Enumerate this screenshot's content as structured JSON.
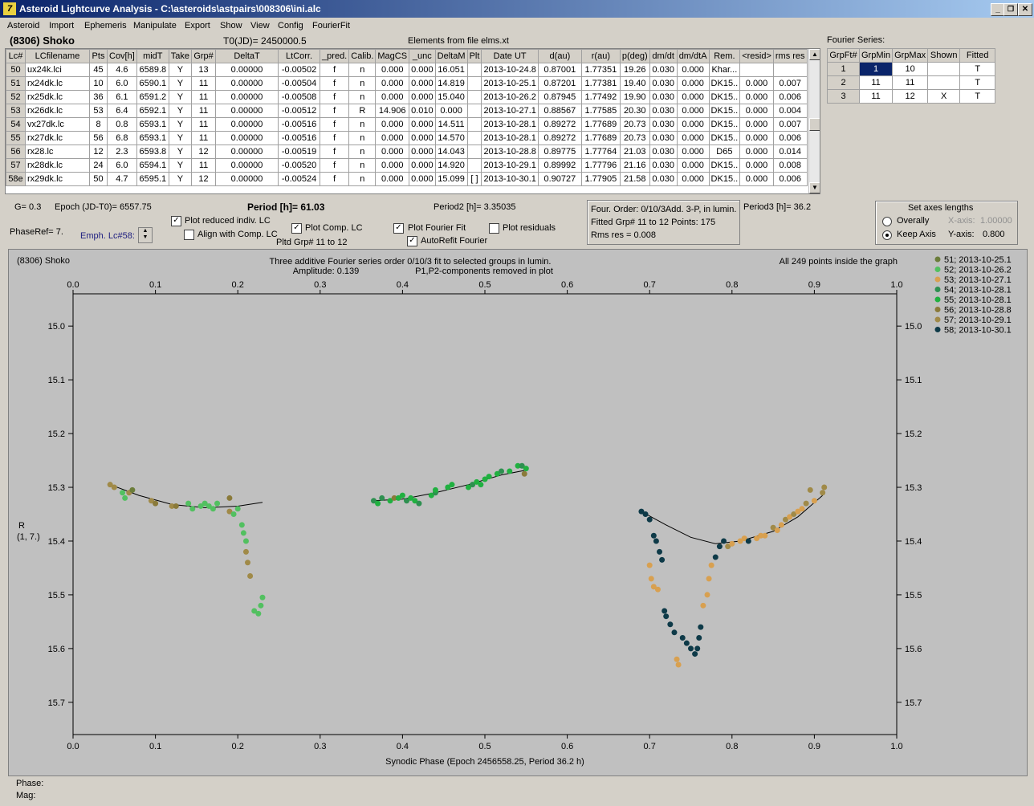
{
  "window": {
    "title": "Asteroid Lightcurve Analysis - C:\\asteroids\\astpairs\\008306\\ini.alc",
    "icon_name": "app-icon",
    "buttons": [
      "minimize-icon",
      "restore-icon",
      "close-icon"
    ],
    "minimize_glyph": "_",
    "restore_glyph": "❐",
    "close_glyph": "✕",
    "icon_glyph": "7"
  },
  "menu": [
    "Asteroid",
    "Import",
    "Ephemeris",
    "Manipulate",
    "Export",
    "Show",
    "View",
    "Config",
    "FourierFit"
  ],
  "header": {
    "asteroid": "(8306) Shoko",
    "t0": "T0(JD)= 2450000.5",
    "elements": "Elements from file elms.xt",
    "fourier_series_label": "Fourier Series:"
  },
  "lc_table": {
    "columns": [
      "Lc#",
      "LCfilename",
      "Pts",
      "Cov[h]",
      "midT",
      "Take",
      "Grp#",
      "DeltaT",
      "LtCorr.",
      "_pred.",
      "Calib.",
      "MagCS",
      "_unc",
      "DeltaM",
      "Plt",
      "Date UT",
      "d(au)",
      "r(au)",
      "p(deg)",
      "dm/dt",
      "dm/dtA",
      "Rem.",
      "<resid>",
      "rms res"
    ],
    "rows": [
      [
        "50",
        "ux24k.lci",
        "45",
        "4.6",
        "6589.8",
        "Y",
        "13",
        "0.00000",
        "-0.00502",
        "f",
        "n",
        "0.000",
        "0.000",
        "16.051",
        "",
        "2013-10-24.8",
        "0.87001",
        "1.77351",
        "19.26",
        "0.030",
        "0.000",
        "Khar...",
        "",
        ""
      ],
      [
        "51",
        "rx24dk.lc",
        "10",
        "6.0",
        "6590.1",
        "Y",
        "11",
        "0.00000",
        "-0.00504",
        "f",
        "n",
        "0.000",
        "0.000",
        "14.819",
        "",
        "2013-10-25.1",
        "0.87201",
        "1.77381",
        "19.40",
        "0.030",
        "0.000",
        "DK15..",
        "0.000",
        "0.007"
      ],
      [
        "52",
        "rx25dk.lc",
        "36",
        "6.1",
        "6591.2",
        "Y",
        "11",
        "0.00000",
        "-0.00508",
        "f",
        "n",
        "0.000",
        "0.000",
        "15.040",
        "",
        "2013-10-26.2",
        "0.87945",
        "1.77492",
        "19.90",
        "0.030",
        "0.000",
        "DK15..",
        "0.000",
        "0.006"
      ],
      [
        "53",
        "rx26dk.lc",
        "53",
        "6.4",
        "6592.1",
        "Y",
        "11",
        "0.00000",
        "-0.00512",
        "f",
        "R",
        "14.906",
        "0.010",
        "0.000",
        "",
        "2013-10-27.1",
        "0.88567",
        "1.77585",
        "20.30",
        "0.030",
        "0.000",
        "DK15..",
        "0.000",
        "0.004"
      ],
      [
        "54",
        "vx27dk.lc",
        "8",
        "0.8",
        "6593.1",
        "Y",
        "11",
        "0.00000",
        "-0.00516",
        "f",
        "n",
        "0.000",
        "0.000",
        "14.511",
        "",
        "2013-10-28.1",
        "0.89272",
        "1.77689",
        "20.73",
        "0.030",
        "0.000",
        "DK15..",
        "0.000",
        "0.007"
      ],
      [
        "55",
        "rx27dk.lc",
        "56",
        "6.8",
        "6593.1",
        "Y",
        "11",
        "0.00000",
        "-0.00516",
        "f",
        "n",
        "0.000",
        "0.000",
        "14.570",
        "",
        "2013-10-28.1",
        "0.89272",
        "1.77689",
        "20.73",
        "0.030",
        "0.000",
        "DK15..",
        "0.000",
        "0.006"
      ],
      [
        "56",
        "rx28.lc",
        "12",
        "2.3",
        "6593.8",
        "Y",
        "12",
        "0.00000",
        "-0.00519",
        "f",
        "n",
        "0.000",
        "0.000",
        "14.043",
        "",
        "2013-10-28.8",
        "0.89775",
        "1.77764",
        "21.03",
        "0.030",
        "0.000",
        "D65",
        "0.000",
        "0.014"
      ],
      [
        "57",
        "rx28dk.lc",
        "24",
        "6.0",
        "6594.1",
        "Y",
        "11",
        "0.00000",
        "-0.00520",
        "f",
        "n",
        "0.000",
        "0.000",
        "14.920",
        "",
        "2013-10-29.1",
        "0.89992",
        "1.77796",
        "21.16",
        "0.030",
        "0.000",
        "DK15..",
        "0.000",
        "0.008"
      ],
      [
        "58e",
        "rx29dk.lc",
        "50",
        "4.7",
        "6595.1",
        "Y",
        "12",
        "0.00000",
        "-0.00524",
        "f",
        "n",
        "0.000",
        "0.000",
        "15.099",
        "[ ]",
        "2013-10-30.1",
        "0.90727",
        "1.77905",
        "21.58",
        "0.030",
        "0.000",
        "DK15..",
        "0.000",
        "0.006"
      ]
    ]
  },
  "fourier_table": {
    "columns": [
      "GrpFt#",
      "GrpMin",
      "GrpMax",
      "Shown",
      "Fitted"
    ],
    "rows": [
      [
        "1",
        "1",
        "10",
        "",
        "T"
      ],
      [
        "2",
        "11",
        "11",
        "",
        "T"
      ],
      [
        "3",
        "11",
        "12",
        "X",
        "T"
      ]
    ]
  },
  "controls": {
    "g": "G= 0.3",
    "epoch": "Epoch (JD-T0)= 6557.75",
    "period": "Period [h]= 61.03",
    "period2": "Period2 [h]= 3.35035",
    "period3": "Period3 [h]= 36.2",
    "phase_ref": "PhaseRef= 7.",
    "emph_lc": "Emph. Lc#58:",
    "plot_reduced": "Plot reduced indiv. LC",
    "align_comp": "Align with Comp. LC",
    "plot_comp": "Plot Comp. LC",
    "pltd_grp": "Pltd Grp#  11 to   12",
    "plot_fourier": "Plot Fourier Fit",
    "autorefit": "AutoRefit Fourier",
    "plot_residuals": "Plot residuals",
    "check_glyph": "✓",
    "checked": {
      "plot_reduced": true,
      "align_comp": false,
      "plot_comp": true,
      "plot_fourier": true,
      "autorefit": true,
      "plot_residuals": false
    },
    "info_order": "Four. Order:  0/10/3Add. 3-P, in lumin.",
    "info_fitted": "Fitted Grp# 11 to 12 Points: 175",
    "info_rms": "Rms res      = 0.008",
    "axes_title": "Set axes lengths",
    "overally": "Overally",
    "keep_axis": "Keep Axis",
    "x_axis_label": "X-axis:",
    "x_axis_value": "1.00000",
    "y_axis_label": "Y-axis:",
    "y_axis_value": "0.800",
    "axes_mode": "keep_axis"
  },
  "chart_data": {
    "type": "scatter",
    "title_left": "(8306) Shoko",
    "title_center_1": "Three additive Fourier series order 0/10/3 fit to selected groups in lumin.",
    "title_center_2": "Amplitude: 0.139",
    "title_center_3": "P1,P2-components removed in plot",
    "title_right": "All 249 points inside the graph",
    "xlabel": "Synodic Phase (Epoch 2456558.25, Period 36.2 h)",
    "ylabel": [
      "R",
      "(1, 7.)"
    ],
    "xlim": [
      0.0,
      1.0
    ],
    "ylim": [
      15.76,
      14.94
    ],
    "x_ticks": [
      "0.0",
      "0.1",
      "0.2",
      "0.3",
      "0.4",
      "0.5",
      "0.6",
      "0.7",
      "0.8",
      "0.9",
      "1.0"
    ],
    "y_ticks": [
      "15.0",
      "15.1",
      "15.2",
      "15.3",
      "15.4",
      "15.5",
      "15.6",
      "15.7"
    ],
    "series": [
      {
        "name": "51; 2013-10-25.1",
        "color": "#6b7d3a"
      },
      {
        "name": "52; 2013-10-26.2",
        "color": "#52c060"
      },
      {
        "name": "53; 2013-10-27.1",
        "color": "#d8a050"
      },
      {
        "name": "54; 2013-10-28.1",
        "color": "#2e9050"
      },
      {
        "name": "55; 2013-10-28.1",
        "color": "#20b040"
      },
      {
        "name": "56; 2013-10-28.8",
        "color": "#8a7a3a"
      },
      {
        "name": "57; 2013-10-29.1",
        "color": "#a08a48"
      },
      {
        "name": "58; 2013-10-30.1",
        "color": "#0e3a48"
      }
    ],
    "points": [
      [
        0.045,
        15.295,
        6
      ],
      [
        0.05,
        15.3,
        6
      ],
      [
        0.06,
        15.31,
        1
      ],
      [
        0.063,
        15.32,
        1
      ],
      [
        0.068,
        15.31,
        6
      ],
      [
        0.072,
        15.305,
        0
      ],
      [
        0.095,
        15.325,
        6
      ],
      [
        0.1,
        15.33,
        5
      ],
      [
        0.12,
        15.335,
        6
      ],
      [
        0.125,
        15.335,
        5
      ],
      [
        0.14,
        15.33,
        1
      ],
      [
        0.145,
        15.34,
        1
      ],
      [
        0.155,
        15.335,
        1
      ],
      [
        0.16,
        15.33,
        1
      ],
      [
        0.165,
        15.335,
        1
      ],
      [
        0.17,
        15.34,
        1
      ],
      [
        0.175,
        15.33,
        1
      ],
      [
        0.19,
        15.32,
        5
      ],
      [
        0.19,
        15.345,
        6
      ],
      [
        0.195,
        15.35,
        1
      ],
      [
        0.2,
        15.34,
        1
      ],
      [
        0.205,
        15.37,
        1
      ],
      [
        0.207,
        15.385,
        1
      ],
      [
        0.21,
        15.4,
        1
      ],
      [
        0.21,
        15.42,
        6
      ],
      [
        0.212,
        15.44,
        6
      ],
      [
        0.215,
        15.465,
        6
      ],
      [
        0.22,
        15.53,
        1
      ],
      [
        0.225,
        15.535,
        1
      ],
      [
        0.228,
        15.52,
        1
      ],
      [
        0.23,
        15.505,
        1
      ],
      [
        0.365,
        15.325,
        3
      ],
      [
        0.37,
        15.33,
        4
      ],
      [
        0.375,
        15.32,
        3
      ],
      [
        0.385,
        15.325,
        4
      ],
      [
        0.39,
        15.32,
        5
      ],
      [
        0.395,
        15.32,
        4
      ],
      [
        0.4,
        15.315,
        4
      ],
      [
        0.405,
        15.325,
        3
      ],
      [
        0.41,
        15.32,
        4
      ],
      [
        0.415,
        15.325,
        4
      ],
      [
        0.42,
        15.33,
        3
      ],
      [
        0.435,
        15.315,
        4
      ],
      [
        0.44,
        15.31,
        3
      ],
      [
        0.44,
        15.305,
        4
      ],
      [
        0.455,
        15.3,
        4
      ],
      [
        0.46,
        15.295,
        4
      ],
      [
        0.48,
        15.3,
        4
      ],
      [
        0.485,
        15.295,
        3
      ],
      [
        0.49,
        15.29,
        4
      ],
      [
        0.495,
        15.295,
        4
      ],
      [
        0.5,
        15.285,
        4
      ],
      [
        0.505,
        15.28,
        4
      ],
      [
        0.515,
        15.275,
        4
      ],
      [
        0.52,
        15.27,
        3
      ],
      [
        0.53,
        15.27,
        4
      ],
      [
        0.54,
        15.26,
        4
      ],
      [
        0.545,
        15.26,
        3
      ],
      [
        0.548,
        15.275,
        5
      ],
      [
        0.55,
        15.265,
        4
      ],
      [
        0.69,
        15.345,
        7
      ],
      [
        0.695,
        15.35,
        7
      ],
      [
        0.7,
        15.36,
        7
      ],
      [
        0.7,
        15.445,
        2
      ],
      [
        0.702,
        15.47,
        2
      ],
      [
        0.705,
        15.485,
        2
      ],
      [
        0.71,
        15.49,
        2
      ],
      [
        0.705,
        15.39,
        7
      ],
      [
        0.708,
        15.4,
        7
      ],
      [
        0.712,
        15.42,
        7
      ],
      [
        0.715,
        15.435,
        7
      ],
      [
        0.718,
        15.53,
        7
      ],
      [
        0.72,
        15.54,
        7
      ],
      [
        0.725,
        15.555,
        7
      ],
      [
        0.73,
        15.57,
        7
      ],
      [
        0.733,
        15.62,
        2
      ],
      [
        0.735,
        15.63,
        2
      ],
      [
        0.74,
        15.58,
        7
      ],
      [
        0.745,
        15.59,
        7
      ],
      [
        0.75,
        15.6,
        7
      ],
      [
        0.755,
        15.61,
        7
      ],
      [
        0.758,
        15.6,
        7
      ],
      [
        0.76,
        15.58,
        7
      ],
      [
        0.762,
        15.56,
        7
      ],
      [
        0.765,
        15.52,
        2
      ],
      [
        0.77,
        15.5,
        2
      ],
      [
        0.772,
        15.47,
        2
      ],
      [
        0.775,
        15.445,
        2
      ],
      [
        0.78,
        15.43,
        7
      ],
      [
        0.785,
        15.41,
        7
      ],
      [
        0.79,
        15.4,
        7
      ],
      [
        0.795,
        15.41,
        6
      ],
      [
        0.8,
        15.405,
        2
      ],
      [
        0.81,
        15.4,
        2
      ],
      [
        0.815,
        15.395,
        2
      ],
      [
        0.82,
        15.4,
        7
      ],
      [
        0.83,
        15.395,
        2
      ],
      [
        0.835,
        15.39,
        2
      ],
      [
        0.84,
        15.39,
        2
      ],
      [
        0.85,
        15.375,
        6
      ],
      [
        0.855,
        15.38,
        2
      ],
      [
        0.86,
        15.37,
        2
      ],
      [
        0.865,
        15.36,
        6
      ],
      [
        0.87,
        15.355,
        2
      ],
      [
        0.875,
        15.35,
        6
      ],
      [
        0.88,
        15.345,
        2
      ],
      [
        0.885,
        15.34,
        2
      ],
      [
        0.89,
        15.33,
        6
      ],
      [
        0.895,
        15.305,
        6
      ],
      [
        0.9,
        15.325,
        2
      ],
      [
        0.91,
        15.31,
        6
      ],
      [
        0.912,
        15.3,
        6
      ]
    ],
    "fit_curves": [
      [
        [
          0.045,
          15.295
        ],
        [
          0.08,
          15.315
        ],
        [
          0.12,
          15.332
        ],
        [
          0.16,
          15.338
        ],
        [
          0.2,
          15.335
        ],
        [
          0.23,
          15.328
        ]
      ],
      [
        [
          0.365,
          15.325
        ],
        [
          0.4,
          15.322
        ],
        [
          0.44,
          15.31
        ],
        [
          0.48,
          15.295
        ],
        [
          0.52,
          15.277
        ],
        [
          0.55,
          15.268
        ]
      ],
      [
        [
          0.69,
          15.345
        ],
        [
          0.72,
          15.37
        ],
        [
          0.75,
          15.393
        ],
        [
          0.78,
          15.405
        ],
        [
          0.81,
          15.4
        ],
        [
          0.85,
          15.382
        ],
        [
          0.88,
          15.355
        ],
        [
          0.91,
          15.315
        ]
      ]
    ]
  },
  "status": {
    "phase": "Phase:",
    "mag": "Mag:"
  }
}
